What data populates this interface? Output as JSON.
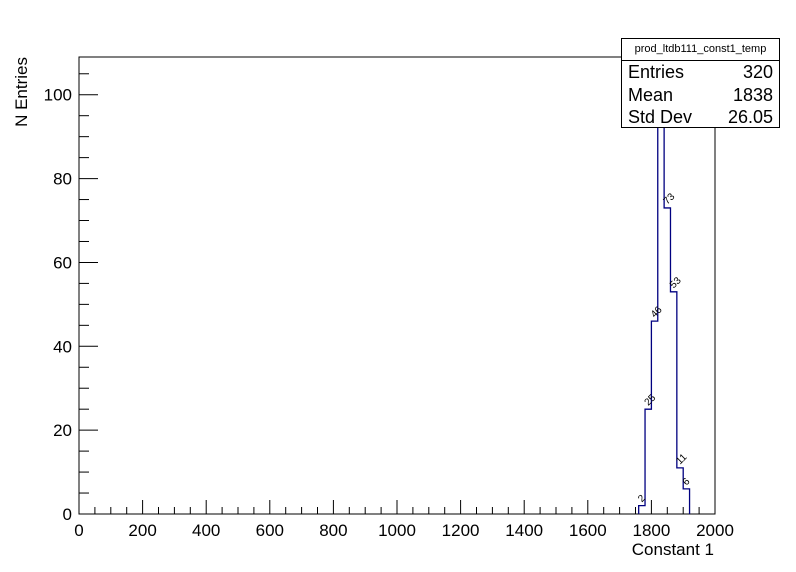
{
  "chart_data": {
    "type": "histogram",
    "title": "",
    "xlabel": "Constant 1",
    "ylabel": "N Entries",
    "xlim": [
      0,
      2000
    ],
    "ylim": [
      0,
      109
    ],
    "x_ticks": [
      0,
      200,
      400,
      600,
      800,
      1000,
      1200,
      1400,
      1600,
      1800,
      2000
    ],
    "y_ticks": [
      0,
      20,
      40,
      60,
      80,
      100
    ],
    "grid": false,
    "line_color": "#000080",
    "bins": [
      {
        "x0": 1760,
        "x1": 1780,
        "value": 2,
        "label": "2"
      },
      {
        "x0": 1780,
        "x1": 1800,
        "value": 25,
        "label": "25"
      },
      {
        "x0": 1800,
        "x1": 1820,
        "value": 46,
        "label": "46"
      },
      {
        "x0": 1820,
        "x1": 1840,
        "value": 103,
        "label": ""
      },
      {
        "x0": 1840,
        "x1": 1860,
        "value": 73,
        "label": "73"
      },
      {
        "x0": 1860,
        "x1": 1880,
        "value": 53,
        "label": "53"
      },
      {
        "x0": 1880,
        "x1": 1900,
        "value": 11,
        "label": "11"
      },
      {
        "x0": 1900,
        "x1": 1920,
        "value": 6,
        "label": "6"
      }
    ]
  },
  "statbox": {
    "title": "prod_ltdb111_const1_temp",
    "entries_label": "Entries",
    "entries_value": "320",
    "mean_label": "Mean",
    "mean_value": "1838",
    "stddev_label": "Std Dev",
    "stddev_value": "26.05"
  }
}
